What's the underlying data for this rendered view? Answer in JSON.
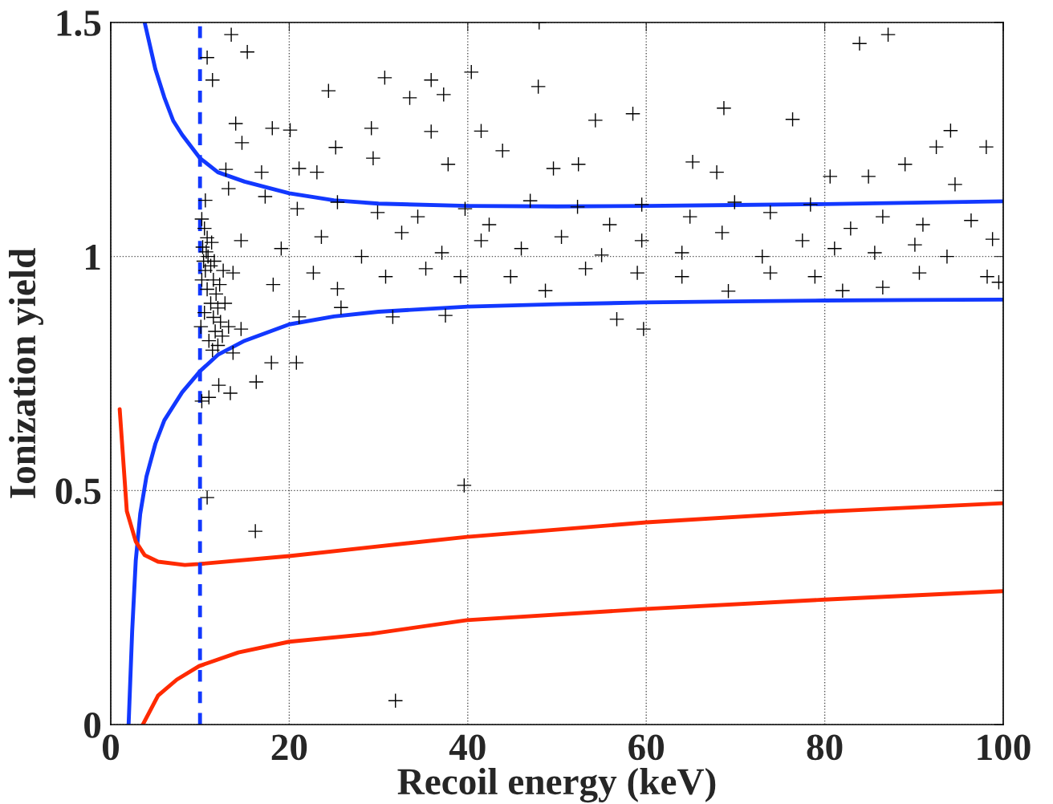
{
  "chart_data": {
    "type": "scatter",
    "xlabel": "Recoil energy (keV)",
    "ylabel": "Ionization yield",
    "xlim": [
      0,
      100
    ],
    "xticks": [
      0,
      20,
      40,
      60,
      80,
      100
    ],
    "ylim": [
      0,
      1.5
    ],
    "yticks": [
      0,
      0.5,
      1,
      1.5
    ],
    "grid": true,
    "series": [
      {
        "color": "#000000",
        "marker": "cross",
        "x": [
          48.0,
          83.9,
          87.1,
          13.5,
          15.3,
          10.8,
          11.4,
          30.7,
          40.4,
          47.9,
          35.9,
          37.3,
          33.5,
          24.4,
          14.0,
          18.1,
          20.1,
          29.2,
          35.9,
          41.5,
          54.3,
          58.5,
          68.7,
          76.4,
          94.1,
          92.5,
          98.1,
          89.0,
          25.2,
          43.9,
          14.7,
          21.1,
          23.1,
          29.4,
          37.8,
          52.4,
          49.6,
          65.2,
          67.9,
          84.9,
          80.6,
          94.6,
          16.9,
          12.9,
          10.6,
          13.2,
          17.3,
          20.9,
          25.4,
          29.9,
          34.4,
          39.7,
          42.4,
          47.0,
          52.3,
          55.9,
          59.5,
          64.9,
          69.9,
          73.9,
          78.4,
          82.9,
          86.5,
          91.0,
          96.4,
          14.6,
          19.1,
          23.6,
          28.1,
          32.6,
          37.1,
          41.5,
          46.0,
          50.5,
          55.0,
          59.5,
          64.0,
          68.5,
          73.0,
          77.5,
          81.1,
          85.6,
          90.1,
          93.7,
          98.8,
          13.7,
          18.2,
          22.7,
          25.4,
          30.8,
          35.3,
          39.2,
          44.8,
          48.7,
          53.2,
          59.0,
          64.0,
          69.2,
          73.9,
          78.9,
          82.0,
          86.5,
          90.6,
          98.2,
          99.5,
          56.7,
          59.7,
          37.5,
          31.6,
          25.8,
          21.1,
          18.0,
          20.8,
          16.3,
          13.4,
          12.1,
          10.8,
          16.2,
          39.6,
          31.9,
          14.6,
          13.7,
          11.0,
          10.2,
          10.2,
          10.5,
          10.8,
          10.3,
          10.9,
          11.2,
          10.6,
          11.5,
          10.8,
          11.8,
          11.2,
          12.0,
          11.5,
          12.3,
          11.7,
          12.5,
          11.0,
          12.0,
          10.4,
          10.7,
          11.3,
          10.2,
          11.6,
          12.2,
          10.5,
          12.8,
          13.2,
          11.4,
          10.1,
          12.6
        ],
        "values": [
          1.5,
          1.455,
          1.474,
          1.474,
          1.437,
          1.425,
          1.377,
          1.382,
          1.394,
          1.363,
          1.377,
          1.346,
          1.339,
          1.354,
          1.284,
          1.274,
          1.27,
          1.274,
          1.267,
          1.268,
          1.291,
          1.305,
          1.317,
          1.293,
          1.269,
          1.234,
          1.234,
          1.197,
          1.233,
          1.226,
          1.243,
          1.188,
          1.18,
          1.21,
          1.197,
          1.197,
          1.188,
          1.202,
          1.18,
          1.171,
          1.171,
          1.154,
          1.18,
          1.186,
          1.12,
          1.145,
          1.128,
          1.102,
          1.116,
          1.094,
          1.085,
          1.102,
          1.068,
          1.119,
          1.106,
          1.068,
          1.111,
          1.085,
          1.116,
          1.094,
          1.111,
          1.06,
          1.085,
          1.068,
          1.077,
          1.034,
          1.017,
          1.042,
          1.0,
          1.051,
          1.008,
          1.034,
          1.017,
          1.042,
          1.003,
          1.034,
          1.008,
          1.051,
          1.0,
          1.034,
          1.017,
          1.008,
          1.025,
          1.0,
          1.037,
          0.965,
          0.94,
          0.965,
          0.931,
          0.957,
          0.974,
          0.957,
          0.957,
          0.927,
          0.974,
          0.965,
          0.957,
          0.926,
          0.965,
          0.957,
          0.927,
          0.934,
          0.965,
          0.957,
          0.945,
          0.866,
          0.845,
          0.874,
          0.871,
          0.891,
          0.871,
          0.773,
          0.773,
          0.732,
          0.708,
          0.725,
          0.485,
          0.413,
          0.511,
          0.051,
          0.845,
          0.794,
          0.699,
          0.691,
          1.08,
          1.06,
          1.04,
          1.02,
          1.0,
          0.98,
          0.97,
          0.95,
          0.93,
          0.92,
          0.9,
          0.89,
          0.87,
          0.86,
          0.84,
          0.83,
          0.82,
          0.81,
          0.99,
          1.01,
          1.03,
          0.95,
          0.99,
          0.94,
          0.88,
          0.9,
          0.85,
          0.8,
          0.85,
          0.97
        ]
      },
      {
        "type": "line",
        "color": "#1238ff",
        "x": [
          3.8,
          5,
          6,
          7,
          8,
          10,
          12,
          15,
          20,
          25,
          30,
          40,
          50,
          60,
          70,
          80,
          90,
          100
        ],
        "values": [
          1.5,
          1.4,
          1.34,
          1.29,
          1.26,
          1.21,
          1.18,
          1.16,
          1.135,
          1.12,
          1.113,
          1.108,
          1.107,
          1.108,
          1.11,
          1.112,
          1.115,
          1.118
        ]
      },
      {
        "type": "line",
        "color": "#1238ff",
        "x": [
          2.0,
          2.4,
          2.8,
          3.3,
          4,
          5,
          6,
          8,
          10,
          12,
          15,
          20,
          25,
          30,
          40,
          50,
          60,
          70,
          80,
          90,
          100
        ],
        "values": [
          0,
          0.2,
          0.35,
          0.45,
          0.53,
          0.6,
          0.65,
          0.71,
          0.755,
          0.79,
          0.82,
          0.855,
          0.872,
          0.882,
          0.893,
          0.898,
          0.902,
          0.904,
          0.906,
          0.907,
          0.908
        ]
      },
      {
        "type": "line",
        "color": "#ff2a00",
        "x": [
          1.0,
          1.8,
          2.8,
          3.8,
          5.3,
          8.3,
          9.9,
          20,
          29.2,
          39.9,
          60,
          80,
          100
        ],
        "values": [
          0.674,
          0.456,
          0.391,
          0.362,
          0.348,
          0.341,
          0.343,
          0.36,
          0.379,
          0.401,
          0.432,
          0.455,
          0.473
        ]
      },
      {
        "type": "line",
        "color": "#ff2a00",
        "x": [
          3.6,
          5.3,
          7.4,
          9.9,
          14.3,
          20,
          29.2,
          39.9,
          60,
          80,
          100
        ],
        "values": [
          0,
          0.062,
          0.096,
          0.125,
          0.154,
          0.177,
          0.194,
          0.223,
          0.247,
          0.267,
          0.285
        ]
      }
    ],
    "ref_lines": [
      {
        "axis": "x",
        "value": 10,
        "color": "#1238ff",
        "line_style": "dashed"
      }
    ]
  }
}
